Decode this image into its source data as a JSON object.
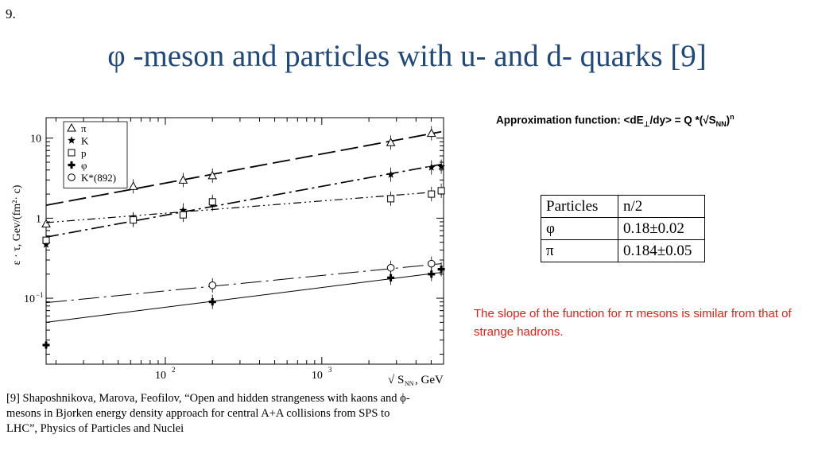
{
  "slide": {
    "number": "9.",
    "title": "φ -meson and particles with u- and d- quarks [9]",
    "approx_prefix": "Approximation function: <dE",
    "approx_perp": "⊥",
    "approx_mid": "/dy> = Q *(√S",
    "approx_sub": "NN",
    "approx_close": ")",
    "approx_sup": "n",
    "table": {
      "header": [
        "Particles",
        "n/2"
      ],
      "rows": [
        [
          "φ",
          "0.18±0.02"
        ],
        [
          "π",
          "0.184±0.05"
        ]
      ]
    },
    "note": "The slope of the function for π mesons is similar from that of strange hadrons.",
    "reference": "[9] Shaposhnikova, Marova, Feofilov, “Open and hidden strangeness with kaons and ϕ-mesons in Bjorken energy density approach for central A+A collisions from SPS to LHC”, Physics of Particles and Nuclei"
  },
  "chart_data": {
    "type": "scatter",
    "title": "",
    "xlabel_root": "√",
    "xlabel_s": "S",
    "xlabel_sub": "NN",
    "xlabel_unit": ", GeV",
    "ylabel": "ε · τ, Gev/(fm²· c)",
    "x_scale": "log",
    "y_scale": "log",
    "xlim": [
      17.3,
      6000
    ],
    "ylim": [
      0.015,
      18
    ],
    "x_ticks": [
      {
        "base": "10",
        "exp": "2",
        "value": 100
      },
      {
        "base": "10",
        "exp": "3",
        "value": 1000
      }
    ],
    "y_ticks": [
      {
        "label": "10",
        "value": 10
      },
      {
        "label": "1",
        "value": 1
      },
      {
        "label": "10",
        "exp": "−1",
        "value": 0.1
      }
    ],
    "legend_position": "top-left",
    "series": [
      {
        "name": "π",
        "marker": "triangle",
        "line": "long-dash",
        "x": [
          17.3,
          62.4,
          130,
          200,
          2760,
          5020
        ],
        "y": [
          0.85,
          2.5,
          3.0,
          3.4,
          8.8,
          11.5
        ],
        "fit": {
          "x": [
            17.3,
            5800
          ],
          "y": [
            1.45,
            12.0
          ]
        }
      },
      {
        "name": "K",
        "marker": "star",
        "line": "dash-dot",
        "x": [
          17.3,
          62.4,
          130,
          200,
          2760,
          5020,
          5800
        ],
        "y": [
          0.47,
          0.97,
          1.25,
          1.5,
          3.5,
          4.3,
          4.4
        ],
        "fit": {
          "x": [
            17.3,
            5800
          ],
          "y": [
            0.58,
            4.7
          ]
        }
      },
      {
        "name": "p",
        "marker": "square",
        "line": "dash-dot-dot",
        "x": [
          17.3,
          62.4,
          130,
          200,
          2760,
          5020,
          5800
        ],
        "y": [
          0.53,
          0.95,
          1.1,
          1.6,
          1.75,
          2.0,
          2.2
        ],
        "fit": {
          "x": [
            17.3,
            5800
          ],
          "y": [
            0.88,
            2.15
          ]
        }
      },
      {
        "name": "φ",
        "marker": "plus",
        "line": "solid",
        "x": [
          17.3,
          200,
          2760,
          5020,
          5800
        ],
        "y": [
          0.026,
          0.09,
          0.18,
          0.2,
          0.23
        ],
        "fit": {
          "x": [
            17.3,
            5800
          ],
          "y": [
            0.05,
            0.21
          ]
        }
      },
      {
        "name": "K*(892)",
        "marker": "circle",
        "line": "dash-dot-long",
        "x": [
          200,
          2760,
          5020
        ],
        "y": [
          0.145,
          0.24,
          0.27
        ],
        "fit": {
          "x": [
            17.3,
            5800
          ],
          "y": [
            0.088,
            0.27
          ]
        }
      }
    ]
  }
}
